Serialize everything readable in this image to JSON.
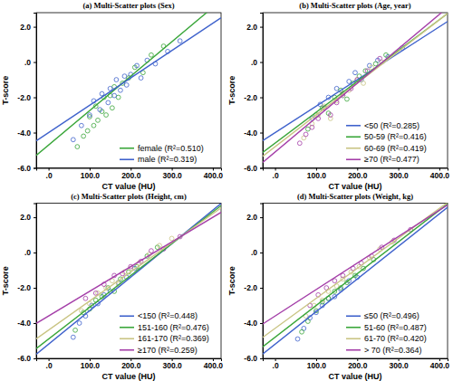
{
  "chart_data": [
    {
      "type": "scatter",
      "title": "(a) Multi-Scatter plots (Sex)",
      "xlabel": "CT value (HU)",
      "ylabel": "T-score",
      "xlim": [
        -30,
        420
      ],
      "ylim": [
        -6,
        2.8
      ],
      "xticks": [
        {
          "value": 0,
          "label": ".0"
        },
        {
          "value": 100,
          "label": "100.0"
        },
        {
          "value": 200,
          "label": "200.0"
        },
        {
          "value": 300,
          "label": "300.0"
        },
        {
          "value": 400,
          "label": "400.0"
        }
      ],
      "yticks": [
        {
          "value": -6,
          "label": "-6.0"
        },
        {
          "value": -4,
          "label": "-4.0"
        },
        {
          "value": -2,
          "label": "-2.0"
        },
        {
          "value": 0,
          "label": ".0"
        },
        {
          "value": 2,
          "label": "2.0"
        }
      ],
      "grid": false,
      "legend": "lower right",
      "marker": "circle",
      "series": [
        {
          "name": "female  (R²=0.510)",
          "color": "#3aa63a",
          "x": [
            70,
            85,
            95,
            100,
            110,
            115,
            120,
            130,
            135,
            140,
            150,
            155,
            160,
            170,
            180,
            195,
            210,
            230,
            250,
            280
          ],
          "values": [
            -4.8,
            -4.2,
            -3.9,
            -3.1,
            -3.6,
            -2.5,
            -3.3,
            -2.8,
            -2.0,
            -3.0,
            -1.9,
            -2.6,
            -1.4,
            -2.0,
            -1.2,
            -0.9,
            -0.3,
            -0.6,
            0.4,
            0.9
          ],
          "fit_x": [
            -30,
            420
          ],
          "fit_y": [
            -5.29,
            3.49
          ]
        },
        {
          "name": "male  (R²=0.319)",
          "color": "#3f62cc",
          "x": [
            60,
            80,
            100,
            110,
            125,
            130,
            145,
            150,
            160,
            165,
            175,
            185,
            190,
            200,
            215,
            225,
            240,
            260,
            290,
            320
          ],
          "values": [
            -4.4,
            -3.6,
            -3.0,
            -2.2,
            -2.7,
            -1.8,
            -2.3,
            -1.5,
            -1.9,
            -1.0,
            -1.6,
            -0.8,
            -1.3,
            -0.7,
            -0.2,
            -0.9,
            0.1,
            -0.1,
            0.6,
            1.2
          ],
          "fit_x": [
            -30,
            420
          ],
          "fit_y": [
            -4.47,
            2.51
          ]
        }
      ]
    },
    {
      "type": "scatter",
      "title": "(b) Multi-Scatter plots (Age, year)",
      "xlabel": "CT value (HU)",
      "ylabel": "T-score",
      "xlim": [
        -30,
        420
      ],
      "ylim": [
        -6,
        2.8
      ],
      "xticks": [
        {
          "value": 0,
          "label": ".0"
        },
        {
          "value": 100,
          "label": "100.0"
        },
        {
          "value": 200,
          "label": "200.0"
        },
        {
          "value": 300,
          "label": "300.0"
        },
        {
          "value": 400,
          "label": "400.0"
        }
      ],
      "yticks": [
        {
          "value": -6,
          "label": "-6.0"
        },
        {
          "value": -4,
          "label": "-4.0"
        },
        {
          "value": -2,
          "label": "-2.0"
        },
        {
          "value": 0,
          "label": ".0"
        },
        {
          "value": 2,
          "label": "2.0"
        }
      ],
      "grid": false,
      "legend": "lower right",
      "marker": "circle",
      "series": [
        {
          "name": "<50  (R²=0.285)",
          "color": "#3f62cc",
          "x": [
            90,
            110,
            130,
            150,
            165,
            180,
            195,
            210,
            230,
            250,
            275,
            310
          ],
          "values": [
            -3.2,
            -2.4,
            -2.0,
            -1.5,
            -1.9,
            -1.1,
            -0.6,
            -1.0,
            -0.2,
            0.1,
            0.3,
            0.8
          ],
          "fit_x": [
            -30,
            420
          ],
          "fit_y": [
            -4.45,
            2.3
          ]
        },
        {
          "name": "50-59  (R²=0.416)",
          "color": "#3aa63a",
          "x": [
            80,
            100,
            115,
            130,
            145,
            160,
            175,
            190,
            205,
            220,
            245,
            270
          ],
          "values": [
            -3.8,
            -3.0,
            -2.6,
            -2.9,
            -2.0,
            -1.6,
            -2.1,
            -1.2,
            -0.8,
            -0.5,
            -0.1,
            0.4
          ],
          "fit_x": [
            -30,
            420
          ],
          "fit_y": [
            -5.125,
            2.75
          ]
        },
        {
          "name": "60-69  (R²=0.419)",
          "color": "#c9c483",
          "x": [
            70,
            90,
            105,
            120,
            135,
            150,
            165,
            180,
            200,
            215,
            235,
            260
          ],
          "values": [
            -4.3,
            -3.5,
            -3.0,
            -2.5,
            -3.2,
            -2.2,
            -1.9,
            -1.6,
            -1.0,
            -1.2,
            -0.3,
            0.0
          ],
          "fit_x": [
            -30,
            420
          ],
          "fit_y": [
            -5.34,
            2.76
          ]
        },
        {
          "name": "≥70  (R²=0.477)",
          "color": "#a43ea8",
          "x": [
            60,
            75,
            90,
            105,
            120,
            135,
            150,
            165,
            185,
            200,
            225,
            255
          ],
          "values": [
            -4.6,
            -4.1,
            -3.7,
            -3.2,
            -2.6,
            -3.0,
            -2.3,
            -1.8,
            -1.5,
            -1.0,
            -0.5,
            0.2
          ],
          "fit_x": [
            -30,
            420
          ],
          "fit_y": [
            -5.685,
            3.09
          ]
        }
      ]
    },
    {
      "type": "scatter",
      "title": "(c) Multi-Scatter plots (Height, cm)",
      "xlabel": "CT value (HU)",
      "ylabel": "T-score",
      "xlim": [
        -30,
        420
      ],
      "ylim": [
        -6,
        2.8
      ],
      "xticks": [
        {
          "value": 0,
          "label": ".0"
        },
        {
          "value": 100,
          "label": "100.0"
        },
        {
          "value": 200,
          "label": "200.0"
        },
        {
          "value": 300,
          "label": "300.0"
        },
        {
          "value": 400,
          "label": "400.0"
        }
      ],
      "yticks": [
        {
          "value": -6,
          "label": "-6.0"
        },
        {
          "value": -4,
          "label": "-4.0"
        },
        {
          "value": -2,
          "label": "-2.0"
        },
        {
          "value": 0,
          "label": ".0"
        },
        {
          "value": 2,
          "label": "2.0"
        }
      ],
      "grid": false,
      "legend": "lower right",
      "marker": "circle",
      "series": [
        {
          "name": "<150  (R²=0.448)",
          "color": "#3f62cc",
          "x": [
            60,
            75,
            90,
            105,
            120,
            135,
            150,
            170,
            190,
            210
          ],
          "values": [
            -4.8,
            -4.0,
            -3.6,
            -3.0,
            -2.9,
            -2.4,
            -2.2,
            -1.7,
            -1.4,
            -0.9
          ],
          "fit_x": [
            -30,
            420
          ],
          "fit_y": [
            -5.77,
            2.78
          ]
        },
        {
          "name": "151-160  (R²=0.476)",
          "color": "#3aa63a",
          "x": [
            65,
            85,
            100,
            115,
            130,
            145,
            160,
            175,
            195,
            215,
            240,
            265
          ],
          "values": [
            -4.4,
            -3.4,
            -3.2,
            -2.7,
            -2.5,
            -2.0,
            -2.2,
            -1.5,
            -1.1,
            -0.8,
            -0.2,
            0.3
          ],
          "fit_x": [
            -30,
            420
          ],
          "fit_y": [
            -5.44,
            2.66
          ]
        },
        {
          "name": "161-170  (R²=0.369)",
          "color": "#c9c483",
          "x": [
            80,
            100,
            120,
            140,
            155,
            170,
            185,
            200,
            220,
            245,
            270,
            300
          ],
          "values": [
            -3.3,
            -2.9,
            -2.3,
            -2.0,
            -1.6,
            -1.8,
            -1.1,
            -0.9,
            -0.6,
            -0.1,
            0.4,
            0.8
          ],
          "fit_x": [
            -30,
            420
          ],
          "fit_y": [
            -4.895,
            2.53
          ]
        },
        {
          "name": "≥170  (R²=0.259)",
          "color": "#a43ea8",
          "x": [
            90,
            115,
            135,
            160,
            180,
            200,
            225,
            250,
            280,
            320
          ],
          "values": [
            -2.6,
            -2.3,
            -1.8,
            -1.3,
            -1.2,
            -0.8,
            -0.5,
            0.1,
            0.2,
            0.9
          ],
          "fit_x": [
            -30,
            420
          ],
          "fit_y": [
            -4.02,
            2.28
          ]
        }
      ]
    },
    {
      "type": "scatter",
      "title": "(d) Multi-Scatter plots (Weight, kg)",
      "xlabel": "CT value (HU)",
      "ylabel": "T-score",
      "xlim": [
        -30,
        420
      ],
      "ylim": [
        -6,
        2.8
      ],
      "xticks": [
        {
          "value": 0,
          "label": ".0"
        },
        {
          "value": 100,
          "label": "100.0"
        },
        {
          "value": 200,
          "label": "200.0"
        },
        {
          "value": 300,
          "label": "300.0"
        },
        {
          "value": 400,
          "label": "400.0"
        }
      ],
      "yticks": [
        {
          "value": -6,
          "label": "-6.0"
        },
        {
          "value": -4,
          "label": "-4.0"
        },
        {
          "value": -2,
          "label": "-2.0"
        },
        {
          "value": 0,
          "label": ".0"
        },
        {
          "value": 2,
          "label": "2.0"
        }
      ],
      "grid": false,
      "legend": "lower right",
      "marker": "circle",
      "series": [
        {
          "name": "≤50  (R²=0.496)",
          "color": "#3f62cc",
          "x": [
            55,
            70,
            85,
            100,
            115,
            130,
            145,
            160,
            180,
            200
          ],
          "values": [
            -4.9,
            -4.3,
            -3.7,
            -3.4,
            -3.0,
            -2.6,
            -2.5,
            -2.1,
            -1.6,
            -1.4
          ],
          "fit_x": [
            -30,
            420
          ],
          "fit_y": [
            -5.755,
            2.57
          ]
        },
        {
          "name": "51-60  (R²=0.487)",
          "color": "#3aa63a",
          "x": [
            65,
            80,
            100,
            115,
            130,
            145,
            160,
            175,
            195,
            215,
            240
          ],
          "values": [
            -4.5,
            -3.9,
            -3.3,
            -2.8,
            -2.6,
            -2.2,
            -2.0,
            -1.7,
            -1.3,
            -0.9,
            -0.4
          ],
          "fit_x": [
            -30,
            420
          ],
          "fit_y": [
            -5.34,
            2.76
          ]
        },
        {
          "name": "61-70  (R²=0.420)",
          "color": "#c9c483",
          "x": [
            75,
            95,
            115,
            130,
            150,
            165,
            185,
            205,
            230,
            255,
            285
          ],
          "values": [
            -3.6,
            -3.0,
            -2.7,
            -2.2,
            -1.9,
            -1.5,
            -1.1,
            -0.8,
            -0.3,
            0.2,
            0.6
          ],
          "fit_x": [
            -30,
            420
          ],
          "fit_y": [
            -4.81,
            2.84
          ]
        },
        {
          "name": "> 70  (R²=0.364)",
          "color": "#a43ea8",
          "x": [
            85,
            105,
            125,
            145,
            165,
            190,
            210,
            235,
            260,
            290,
            330
          ],
          "values": [
            -3.0,
            -2.4,
            -2.0,
            -1.6,
            -1.3,
            -0.9,
            -0.6,
            -0.2,
            0.3,
            0.7,
            1.3
          ],
          "fit_x": [
            -30,
            420
          ],
          "fit_y": [
            -4.05,
            2.7
          ]
        }
      ]
    }
  ]
}
